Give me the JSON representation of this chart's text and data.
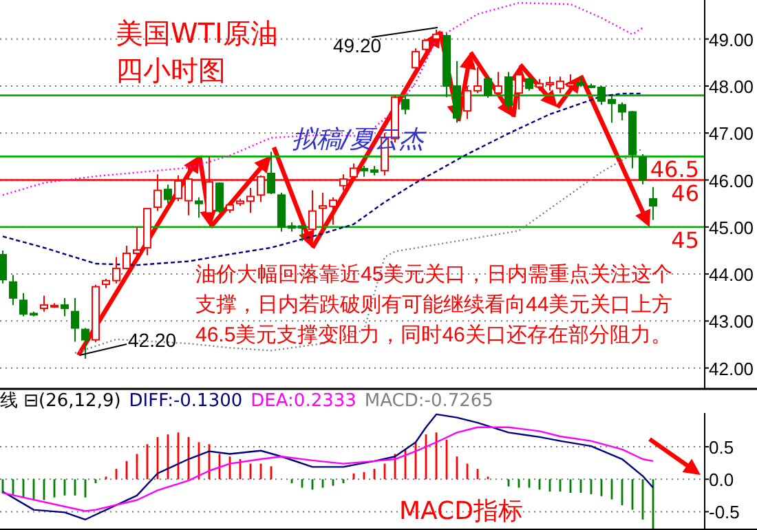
{
  "chart_data": [
    {
      "type": "candlestick",
      "title": "美国WTI原油",
      "subtitle": "四小时图",
      "categories": [
        null,
        null,
        null,
        null,
        null,
        null,
        null,
        null,
        null,
        null,
        null,
        null,
        null,
        null,
        null,
        null,
        null,
        null,
        null,
        null,
        null,
        null,
        null,
        null,
        null,
        null,
        null,
        null,
        null,
        null,
        null,
        null,
        null,
        null,
        null,
        null,
        null,
        null,
        null,
        null,
        null,
        null,
        null,
        null,
        null,
        null,
        null,
        null,
        null,
        null,
        null,
        null,
        null,
        null,
        null,
        null,
        null,
        null,
        null,
        null,
        null,
        null,
        null,
        null
      ],
      "ohlc": [
        [
          44.41,
          44.5,
          43.8,
          43.88
        ],
        [
          43.83,
          43.98,
          43.34,
          43.49
        ],
        [
          43.44,
          43.59,
          43.1,
          43.15
        ],
        [
          43.16,
          43.2,
          43.1,
          43.14
        ],
        [
          43.27,
          43.54,
          43.2,
          43.34
        ],
        [
          43.3,
          43.38,
          43.28,
          43.33
        ],
        [
          43.34,
          43.49,
          43.1,
          43.27
        ],
        [
          43.2,
          43.49,
          42.56,
          42.85
        ],
        [
          42.82,
          42.85,
          42.2,
          42.6
        ],
        [
          42.6,
          43.77,
          42.55,
          43.73
        ],
        [
          43.78,
          43.9,
          43.7,
          43.86
        ],
        [
          43.86,
          44.36,
          43.8,
          44.12
        ],
        [
          44.12,
          44.6,
          44.1,
          44.44
        ],
        [
          44.44,
          45.0,
          44.3,
          44.51
        ],
        [
          44.56,
          45.4,
          44.4,
          45.39
        ],
        [
          45.42,
          46.12,
          45.34,
          45.78
        ],
        [
          45.8,
          45.9,
          45.5,
          45.59
        ],
        [
          45.61,
          46.1,
          45.55,
          45.98
        ],
        [
          45.56,
          46.32,
          45.25,
          46.02
        ],
        [
          45.55,
          45.63,
          45.2,
          45.5
        ],
        [
          45.3,
          46.5,
          45.1,
          45.96
        ],
        [
          45.93,
          45.95,
          45.3,
          45.34
        ],
        [
          45.36,
          45.5,
          45.3,
          45.47
        ],
        [
          45.5,
          45.6,
          45.45,
          45.55
        ],
        [
          45.55,
          45.83,
          45.3,
          45.65
        ],
        [
          45.68,
          46.1,
          45.53,
          46.07
        ],
        [
          46.14,
          46.6,
          45.7,
          45.73
        ],
        [
          45.68,
          45.73,
          44.9,
          45.0
        ],
        [
          45.02,
          45.1,
          44.9,
          44.98
        ],
        [
          45.02,
          45.05,
          44.7,
          44.98
        ],
        [
          44.95,
          45.78,
          44.9,
          45.34
        ],
        [
          45.4,
          45.73,
          44.85,
          45.45
        ],
        [
          45.44,
          45.63,
          45.05,
          45.57
        ],
        [
          45.88,
          46.12,
          45.78,
          46.02
        ],
        [
          46.07,
          46.35,
          46.0,
          46.25
        ],
        [
          46.24,
          46.3,
          46.07,
          46.2
        ],
        [
          46.21,
          46.3,
          46.1,
          46.17
        ],
        [
          46.2,
          47.0,
          46.1,
          46.9
        ],
        [
          46.88,
          47.8,
          46.8,
          47.76
        ],
        [
          47.71,
          47.78,
          47.4,
          47.51
        ],
        [
          48.39,
          48.8,
          48.3,
          48.73
        ],
        [
          48.78,
          49.0,
          48.7,
          48.97
        ],
        [
          49.0,
          49.2,
          48.9,
          49.1
        ],
        [
          49.07,
          49.12,
          47.76,
          48.0
        ],
        [
          48.0,
          48.53,
          47.22,
          47.32
        ],
        [
          47.47,
          48.0,
          47.3,
          47.9
        ],
        [
          47.9,
          48.4,
          47.85,
          48.0
        ],
        [
          48.15,
          48.2,
          47.75,
          47.8
        ],
        [
          47.85,
          48.3,
          47.8,
          48.0
        ],
        [
          48.19,
          48.3,
          47.5,
          47.6
        ],
        [
          47.85,
          48.4,
          47.5,
          48.24
        ],
        [
          48.15,
          48.2,
          47.9,
          47.95
        ],
        [
          47.98,
          48.15,
          47.9,
          48.05
        ],
        [
          48.03,
          48.2,
          47.9,
          48.07
        ],
        [
          47.95,
          48.2,
          47.85,
          48.1
        ],
        [
          48.0,
          48.25,
          47.9,
          48.05
        ],
        [
          48.07,
          48.2,
          47.98,
          48.02
        ],
        [
          48.0,
          48.05,
          47.95,
          47.98
        ],
        [
          47.97,
          48.0,
          47.6,
          47.68
        ],
        [
          47.71,
          47.8,
          47.22,
          47.63
        ],
        [
          47.6,
          47.65,
          47.27,
          47.45
        ],
        [
          47.45,
          47.47,
          46.25,
          46.54
        ],
        [
          46.48,
          46.55,
          45.91,
          46.0
        ],
        [
          45.6,
          45.85,
          45.15,
          45.45
        ]
      ],
      "colors": [
        "#008000",
        "#008000",
        "#008000",
        "#008000",
        "#ff0000",
        "#ff0000",
        "#008000",
        "#008000",
        "#008000",
        "#ff0000",
        "#ff0000",
        "#ff0000",
        "#ff0000",
        "#ff0000",
        "#ff0000",
        "#ff0000",
        "#008000",
        "#ff0000",
        "#ff0000",
        "#008000",
        "#ff0000",
        "#008000",
        "#ff0000",
        "#ff0000",
        "#ff0000",
        "#ff0000",
        "#008000",
        "#008000",
        "#008000",
        "#008000",
        "#ff0000",
        "#ff0000",
        "#ff0000",
        "#ff0000",
        "#ff0000",
        "#008000",
        "#008000",
        "#ff0000",
        "#ff0000",
        "#008000",
        "#ff0000",
        "#ff0000",
        "#ff0000",
        "#008000",
        "#008000",
        "#ff0000",
        "#ff0000",
        "#008000",
        "#ff0000",
        "#008000",
        "#ff0000",
        "#008000",
        "#ff0000",
        "#ff0000",
        "#ff0000",
        "#ff0000",
        "#008000",
        "#008000",
        "#008000",
        "#008000",
        "#008000",
        "#008000",
        "#008000",
        "#008000"
      ],
      "series": [
        {
          "type": "line",
          "color": "#ff00ff",
          "line_style": "dotted",
          "values": [
            45.68,
            null,
            null,
            null,
            45.94,
            null,
            null,
            null,
            null,
            46.08,
            null,
            null,
            null,
            null,
            null,
            null,
            null,
            null,
            46.26,
            null,
            null,
            null,
            46.52,
            null,
            null,
            null,
            46.9,
            null,
            null,
            null,
            null,
            46.96,
            null,
            null,
            null,
            46.93,
            null,
            null,
            47.49,
            null,
            48.07,
            null,
            49.0,
            null,
            null,
            null,
            49.53,
            null,
            null,
            null,
            49.77,
            null,
            null,
            null,
            null,
            49.74,
            null,
            null,
            49.45,
            null,
            null,
            49.1,
            49.24,
            null
          ]
        },
        {
          "type": "line",
          "color": "#000080",
          "line_style": "dashed",
          "values": [
            44.8,
            null,
            null,
            null,
            44.56,
            null,
            null,
            null,
            null,
            44.22,
            null,
            null,
            null,
            44.19,
            null,
            null,
            null,
            null,
            44.27,
            null,
            null,
            null,
            44.42,
            null,
            null,
            null,
            44.56,
            null,
            null,
            null,
            null,
            44.86,
            null,
            null,
            45.06,
            null,
            null,
            45.53,
            null,
            null,
            45.94,
            null,
            null,
            null,
            null,
            46.55,
            null,
            null,
            null,
            46.99,
            null,
            null,
            null,
            47.4,
            null,
            null,
            null,
            null,
            47.78,
            null,
            47.84,
            null,
            47.84,
            null
          ]
        },
        {
          "type": "line",
          "color": "#808080",
          "line_style": "dotted",
          "values": [
            null,
            null,
            null,
            null,
            null,
            null,
            null,
            42.32,
            null,
            null,
            null,
            42.61,
            null,
            null,
            null,
            null,
            null,
            null,
            42.52,
            null,
            null,
            null,
            42.43,
            null,
            null,
            null,
            42.37,
            null,
            null,
            null,
            null,
            42.52,
            null,
            null,
            null,
            42.81,
            null,
            44.36,
            44.48,
            null,
            null,
            null,
            null,
            null,
            null,
            null,
            null,
            null,
            null,
            null,
            44.92,
            null,
            null,
            null,
            null,
            null,
            null,
            null,
            46.17,
            null,
            null,
            null,
            46.67,
            null
          ]
        }
      ],
      "ylim": [
        41.57,
        49.83
      ],
      "yticks": [
        {
          "value": 42,
          "label": "42.00"
        },
        {
          "value": 43,
          "label": "43.00"
        },
        {
          "value": 44,
          "label": "44.00"
        },
        {
          "value": 45,
          "label": "45.00"
        },
        {
          "value": 46,
          "label": "46.00"
        },
        {
          "value": 47,
          "label": "47.00"
        },
        {
          "value": 48,
          "label": "48.00"
        },
        {
          "value": 49,
          "label": "49.00"
        }
      ],
      "grid": "y",
      "tick_labels": "y",
      "ref_lines": [
        {
          "axis": "y",
          "value": 47.8,
          "color": "#00b000"
        },
        {
          "axis": "y",
          "value": 46.5,
          "label": "46.5",
          "color": "#00b000"
        },
        {
          "axis": "y",
          "value": 45,
          "label": "45",
          "color": "#00b000"
        },
        {
          "axis": "y",
          "value": 46,
          "label": "46",
          "color": "#ff0000"
        }
      ],
      "annotations": [
        "拟稿/夏云杰",
        "油价大幅回落靠近45美元关口，日内需重点关注这个支撑，日内若跌破则有可能继续看向44美元关口上方46.5美元支撑变阻力，同时46关口还存在部分阻力。",
        "49.20",
        "42.20"
      ]
    },
    {
      "type": "bar",
      "categories": [
        null,
        null,
        null,
        null,
        null,
        null,
        null,
        null,
        null,
        null,
        null,
        null,
        null,
        null,
        null,
        null,
        null,
        null,
        null,
        null,
        null,
        null,
        null,
        null,
        null,
        null,
        null,
        null,
        null,
        null,
        null,
        null,
        null,
        null,
        null,
        null,
        null,
        null,
        null,
        null,
        null,
        null,
        null,
        null,
        null,
        null,
        null,
        null,
        null,
        null,
        null,
        null,
        null,
        null,
        null,
        null,
        null,
        null,
        null,
        null,
        null,
        null,
        null,
        null
      ],
      "series": [
        {
          "type": "bar",
          "values": [
            -0.22,
            -0.25,
            -0.28,
            -0.32,
            -0.32,
            -0.28,
            -0.25,
            -0.25,
            -0.28,
            -0.06,
            0.04,
            0.16,
            0.28,
            0.39,
            0.54,
            0.65,
            0.69,
            0.72,
            0.65,
            0.57,
            0.54,
            0.39,
            0.35,
            0.31,
            0.24,
            0.24,
            0.2,
            null,
            -0.06,
            -0.13,
            -0.16,
            -0.13,
            -0.1,
            -0.06,
            0.09,
            0.11,
            0.16,
            0.24,
            0.39,
            0.46,
            0.57,
            0.69,
            0.72,
            0.61,
            0.35,
            0.24,
            0.16,
            0.04,
            null,
            -0.11,
            -0.13,
            -0.13,
            -0.16,
            -0.19,
            -0.19,
            -0.21,
            -0.21,
            -0.23,
            -0.26,
            -0.31,
            -0.4,
            -0.47,
            -0.62,
            -0.76
          ],
          "colors": [
            "#008000",
            "#008000",
            "#008000",
            "#008000",
            "#008000",
            "#008000",
            "#008000",
            "#008000",
            "#008000",
            "#008000",
            "#ff0000",
            "#ff0000",
            "#ff0000",
            "#ff0000",
            "#ff0000",
            "#ff0000",
            "#ff0000",
            "#ff0000",
            "#ff0000",
            "#ff0000",
            "#ff0000",
            "#ff0000",
            "#ff0000",
            "#ff0000",
            "#ff0000",
            "#ff0000",
            "#ff0000",
            null,
            "#008000",
            "#008000",
            "#008000",
            "#008000",
            "#008000",
            "#008000",
            "#ff0000",
            "#ff0000",
            "#ff0000",
            "#ff0000",
            "#ff0000",
            "#ff0000",
            "#ff0000",
            "#ff0000",
            "#ff0000",
            "#ff0000",
            "#ff0000",
            "#ff0000",
            "#ff0000",
            "#ff0000",
            null,
            "#008000",
            "#008000",
            "#008000",
            "#008000",
            "#008000",
            "#008000",
            "#008000",
            "#008000",
            "#008000",
            "#008000",
            "#008000",
            "#008000",
            "#008000",
            "#008000",
            "#008000"
          ]
        },
        {
          "type": "line",
          "name": "DIFF:-0.1300",
          "color": "#000080",
          "values": [
            -0.19,
            null,
            null,
            -0.47,
            null,
            null,
            -0.51,
            null,
            -0.62,
            null,
            null,
            null,
            null,
            -0.25,
            null,
            0.09,
            null,
            null,
            0.31,
            null,
            0.43,
            null,
            0.39,
            null,
            null,
            0.44,
            null,
            0.35,
            null,
            null,
            0.19,
            null,
            null,
            0.19,
            null,
            null,
            0.28,
            null,
            0.35,
            null,
            0.57,
            0.8,
            1.0,
            null,
            0.95,
            null,
            0.87,
            null,
            null,
            0.72,
            null,
            null,
            0.65,
            null,
            0.59,
            null,
            null,
            0.51,
            null,
            null,
            0.31,
            null,
            0.05,
            -0.13
          ]
        },
        {
          "type": "line",
          "name": "DEA:0.2333",
          "color": "#ff00ff",
          "values": [
            -0.21,
            null,
            null,
            null,
            null,
            null,
            null,
            null,
            -0.49,
            -0.47,
            null,
            null,
            null,
            -0.32,
            null,
            -0.17,
            null,
            null,
            -0.02,
            null,
            0.13,
            null,
            0.24,
            null,
            null,
            0.31,
            null,
            0.35,
            null,
            null,
            0.29,
            null,
            null,
            0.24,
            null,
            null,
            0.28,
            null,
            0.31,
            null,
            0.43,
            null,
            0.57,
            null,
            0.72,
            null,
            0.8,
            null,
            null,
            0.8,
            null,
            null,
            0.74,
            null,
            0.66,
            null,
            null,
            0.59,
            null,
            null,
            0.46,
            null,
            0.31,
            0.28
          ]
        }
      ],
      "ylim": [
        -0.76,
        1.02
      ],
      "yticks": [
        {
          "value": -0.5,
          "label": "-0.5"
        },
        {
          "value": 0,
          "label": "0.0"
        },
        {
          "value": 0.5,
          "label": "0.5"
        }
      ],
      "grid": "y",
      "tick_labels": "y",
      "legend": "top left",
      "annotations": [
        "线 ⊟(26,12,9)",
        "MACD:-0.7265",
        "MACD指标"
      ]
    }
  ]
}
